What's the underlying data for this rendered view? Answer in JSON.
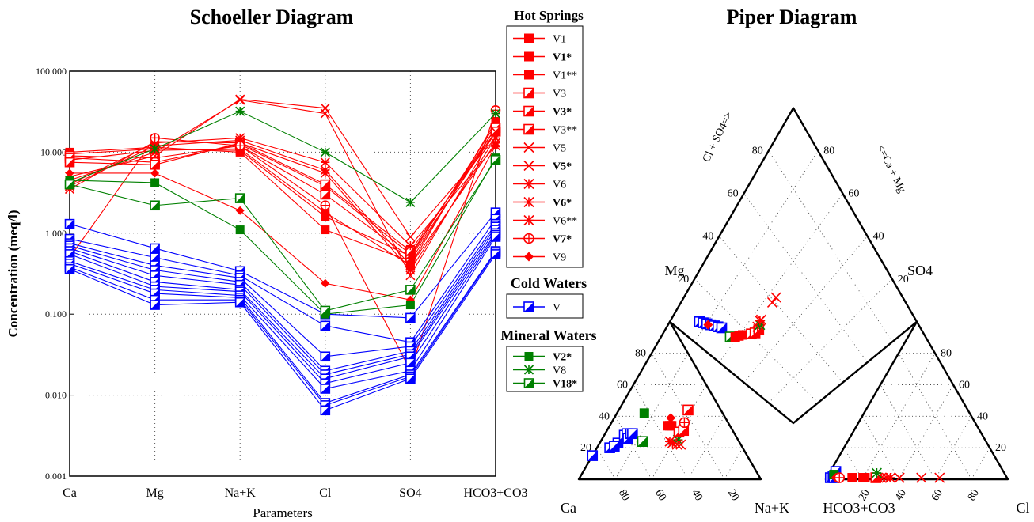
{
  "chart_data": [
    {
      "type": "line",
      "title": "Schoeller Diagram",
      "xlabel": "Parameters",
      "ylabel": "Concentration (meq/l)",
      "yscale": "log",
      "ylim": [
        0.001,
        100
      ],
      "yticks": [
        "0.001",
        "0.010",
        "0.100",
        "1.000",
        "10.000",
        "100.000"
      ],
      "grid": true,
      "categories": [
        "Ca",
        "Mg",
        "Na+K",
        "Cl",
        "SO4",
        "HCO3+CO3"
      ],
      "series": [
        {
          "group": "Hot Springs",
          "marker": "square",
          "color": "#ff0000",
          "values": [
            10,
            11.5,
            10,
            1.1,
            0.45,
            20
          ]
        },
        {
          "group": "Hot Springs",
          "marker": "square",
          "color": "#ff0000",
          "values": [
            9.5,
            11,
            10.5,
            1.6,
            0.52,
            22
          ]
        },
        {
          "group": "Hot Springs",
          "marker": "square",
          "color": "#ff0000",
          "values": [
            8,
            10.5,
            11,
            1.8,
            0.4,
            24
          ]
        },
        {
          "group": "Hot Springs",
          "marker": "half-square",
          "color": "#ff0000",
          "values": [
            9,
            8.5,
            12,
            3,
            0.5,
            18
          ]
        },
        {
          "group": "Hot Springs",
          "marker": "half-square",
          "color": "#ff0000",
          "values": [
            8.5,
            7.5,
            12.5,
            3.8,
            0.55,
            20
          ]
        },
        {
          "group": "Hot Springs",
          "marker": "half-square",
          "color": "#ff0000",
          "values": [
            7.5,
            7,
            13,
            4,
            0.6,
            18
          ]
        },
        {
          "group": "Hot Springs",
          "marker": "x",
          "color": "#ff0000",
          "values": [
            5,
            9,
            45,
            35,
            0.9,
            15
          ]
        },
        {
          "group": "Hot Springs",
          "marker": "x",
          "color": "#ff0000",
          "values": [
            4.5,
            10,
            44,
            30,
            0.3,
            18
          ]
        },
        {
          "group": "Hot Springs",
          "marker": "star",
          "color": "#ff0000",
          "values": [
            4,
            13,
            15,
            7.5,
            0.7,
            12
          ]
        },
        {
          "group": "Hot Springs",
          "marker": "star",
          "color": "#ff0000",
          "values": [
            3.8,
            12,
            14,
            6,
            0.4,
            13
          ]
        },
        {
          "group": "Hot Springs",
          "marker": "star",
          "color": "#ff0000",
          "values": [
            3.5,
            13.5,
            13,
            5.5,
            0.35,
            15
          ]
        },
        {
          "group": "Hot Springs",
          "marker": "circle-plus",
          "color": "#ff0000",
          "values": [
            0.5,
            15,
            12,
            2.2,
            0.02,
            33
          ]
        },
        {
          "group": "Hot Springs",
          "marker": "diamond",
          "color": "#ff0000",
          "values": [
            5.5,
            5.5,
            1.9,
            0.24,
            0.15,
            12
          ]
        },
        {
          "group": "Cold Waters",
          "marker": "half-square",
          "color": "#0000ff",
          "values": [
            1.3,
            0.65,
            0.34,
            0.1,
            0.09,
            1.8
          ]
        },
        {
          "group": "Cold Waters",
          "marker": "half-square",
          "color": "#0000ff",
          "values": [
            0.85,
            0.5,
            0.3,
            0.072,
            0.045,
            1.5
          ]
        },
        {
          "group": "Cold Waters",
          "marker": "half-square",
          "color": "#0000ff",
          "values": [
            0.75,
            0.4,
            0.28,
            0.03,
            0.04,
            1.3
          ]
        },
        {
          "group": "Cold Waters",
          "marker": "half-square",
          "color": "#0000ff",
          "values": [
            0.7,
            0.35,
            0.25,
            0.02,
            0.035,
            1.2
          ]
        },
        {
          "group": "Cold Waters",
          "marker": "half-square",
          "color": "#0000ff",
          "values": [
            0.65,
            0.3,
            0.23,
            0.018,
            0.032,
            1.1
          ]
        },
        {
          "group": "Cold Waters",
          "marker": "half-square",
          "color": "#0000ff",
          "values": [
            0.6,
            0.25,
            0.2,
            0.016,
            0.03,
            1.0
          ]
        },
        {
          "group": "Cold Waters",
          "marker": "half-square",
          "color": "#0000ff",
          "values": [
            0.55,
            0.22,
            0.19,
            0.014,
            0.025,
            0.95
          ]
        },
        {
          "group": "Cold Waters",
          "marker": "half-square",
          "color": "#0000ff",
          "values": [
            0.45,
            0.2,
            0.17,
            0.012,
            0.02,
            0.9
          ]
        },
        {
          "group": "Cold Waters",
          "marker": "half-square",
          "color": "#0000ff",
          "values": [
            0.42,
            0.18,
            0.16,
            0.008,
            0.018,
            0.6
          ]
        },
        {
          "group": "Cold Waters",
          "marker": "half-square",
          "color": "#0000ff",
          "values": [
            0.38,
            0.15,
            0.15,
            0.0075,
            0.017,
            0.58
          ]
        },
        {
          "group": "Cold Waters",
          "marker": "half-square",
          "color": "#0000ff",
          "values": [
            0.36,
            0.13,
            0.14,
            0.0065,
            0.016,
            0.55
          ]
        },
        {
          "group": "Mineral Waters",
          "marker": "square",
          "color": "#008000",
          "values": [
            4.5,
            4.2,
            1.1,
            0.1,
            0.13,
            8.5
          ]
        },
        {
          "group": "Mineral Waters",
          "marker": "star",
          "color": "#008000",
          "values": [
            4.2,
            11,
            32,
            10,
            2.4,
            30
          ]
        },
        {
          "group": "Mineral Waters",
          "marker": "half-square",
          "color": "#008000",
          "values": [
            4,
            2.2,
            2.7,
            0.11,
            0.2,
            8
          ]
        }
      ]
    },
    {
      "type": "scatter",
      "title": "Piper Diagram",
      "corner_labels": {
        "ca": "Ca",
        "nak": "Na+K",
        "hco3": "HCO3+CO3",
        "cl": "Cl",
        "mg": "Mg",
        "so4": "SO4"
      },
      "axis_labels": {
        "cl_so4": "Cl + SO4=>",
        "ca_mg": "<=Ca + Mg"
      },
      "tick_values": [
        "20",
        "40",
        "60",
        "80"
      ],
      "cation_points": [
        {
          "ca": 85,
          "nak": 0,
          "marker": "half-square",
          "color": "#0000ff"
        },
        {
          "ca": 73,
          "nak": 7,
          "marker": "half-square",
          "color": "#0000ff"
        },
        {
          "ca": 67,
          "nak": 10,
          "marker": "half-square",
          "color": "#0000ff"
        },
        {
          "ca": 70,
          "nak": 9,
          "marker": "half-square",
          "color": "#0000ff"
        },
        {
          "ca": 61,
          "nak": 11,
          "marker": "half-square",
          "color": "#0000ff"
        },
        {
          "ca": 59,
          "nak": 12,
          "marker": "half-square",
          "color": "#0000ff"
        },
        {
          "ca": 60,
          "nak": 14,
          "marker": "half-square",
          "color": "#0000ff"
        },
        {
          "ca": 57,
          "nak": 14,
          "marker": "half-square",
          "color": "#0000ff"
        },
        {
          "ca": 56,
          "nak": 15,
          "marker": "half-square",
          "color": "#0000ff"
        },
        {
          "ca": 53,
          "nak": 23,
          "marker": "half-square",
          "color": "#008000"
        },
        {
          "ca": 43,
          "nak": 15,
          "marker": "square",
          "color": "#008000"
        },
        {
          "ca": 33,
          "nak": 42,
          "marker": "star",
          "color": "#008000"
        },
        {
          "ca": 30,
          "nak": 31,
          "marker": "diamond",
          "color": "#ff0000"
        },
        {
          "ca": 34,
          "nak": 32,
          "marker": "square",
          "color": "#ff0000"
        },
        {
          "ca": 33,
          "nak": 33,
          "marker": "square",
          "color": "#ff0000"
        },
        {
          "ca": 32,
          "nak": 34,
          "marker": "square",
          "color": "#ff0000"
        },
        {
          "ca": 30,
          "nak": 40,
          "marker": "half-square",
          "color": "#ff0000"
        },
        {
          "ca": 27,
          "nak": 42,
          "marker": "half-square",
          "color": "#ff0000"
        },
        {
          "ca": 18,
          "nak": 38,
          "marker": "half-square",
          "color": "#ff0000"
        },
        {
          "ca": 24,
          "nak": 40,
          "marker": "circle-plus",
          "color": "#ff0000"
        },
        {
          "ca": 38,
          "nak": 38,
          "marker": "star",
          "color": "#ff0000"
        },
        {
          "ca": 37,
          "nak": 40,
          "marker": "star",
          "color": "#ff0000"
        },
        {
          "ca": 35,
          "nak": 43,
          "marker": "x",
          "color": "#ff0000"
        },
        {
          "ca": 33,
          "nak": 45,
          "marker": "x",
          "color": "#ff0000"
        }
      ],
      "anion_points": [
        {
          "cl": 2,
          "so4": 1,
          "marker": "half-square",
          "color": "#0000ff"
        },
        {
          "cl": 3,
          "so4": 2,
          "marker": "half-square",
          "color": "#0000ff"
        },
        {
          "cl": 3,
          "so4": 5,
          "marker": "half-square",
          "color": "#0000ff"
        },
        {
          "cl": 4,
          "so4": 1,
          "marker": "half-square",
          "color": "#0000ff"
        },
        {
          "cl": 3,
          "so4": 3,
          "marker": "square",
          "color": "#008000"
        },
        {
          "cl": 5,
          "so4": 1,
          "marker": "diamond",
          "color": "#ff0000"
        },
        {
          "cl": 7,
          "so4": 1,
          "marker": "circle-plus",
          "color": "#ff0000"
        },
        {
          "cl": 14,
          "so4": 1,
          "marker": "square",
          "color": "#ff0000"
        },
        {
          "cl": 20,
          "so4": 1,
          "marker": "square",
          "color": "#ff0000"
        },
        {
          "cl": 21,
          "so4": 1,
          "marker": "square",
          "color": "#ff0000"
        },
        {
          "cl": 27,
          "so4": 1,
          "marker": "half-square",
          "color": "#ff0000"
        },
        {
          "cl": 30,
          "so4": 1,
          "marker": "star",
          "color": "#ff0000"
        },
        {
          "cl": 33,
          "so4": 1,
          "marker": "star",
          "color": "#ff0000"
        },
        {
          "cl": 35,
          "so4": 1,
          "marker": "star",
          "color": "#ff0000"
        },
        {
          "cl": 40,
          "so4": 1,
          "marker": "x",
          "color": "#ff0000"
        },
        {
          "cl": 52,
          "so4": 1,
          "marker": "x",
          "color": "#ff0000"
        },
        {
          "cl": 62,
          "so4": 1,
          "marker": "x",
          "color": "#ff0000"
        },
        {
          "cl": 26,
          "so4": 4,
          "marker": "star",
          "color": "#008000"
        }
      ],
      "diamond_points": [
        {
          "a": 12,
          "b": 88,
          "marker": "half-square",
          "color": "#0000ff"
        },
        {
          "a": 13,
          "b": 86,
          "marker": "half-square",
          "color": "#0000ff"
        },
        {
          "a": 14,
          "b": 84,
          "marker": "half-square",
          "color": "#0000ff"
        },
        {
          "a": 15,
          "b": 82,
          "marker": "half-square",
          "color": "#0000ff"
        },
        {
          "a": 16,
          "b": 80,
          "marker": "half-square",
          "color": "#0000ff"
        },
        {
          "a": 17,
          "b": 78,
          "marker": "half-square",
          "color": "#0000ff"
        },
        {
          "a": 18,
          "b": 76,
          "marker": "half-square",
          "color": "#0000ff"
        },
        {
          "a": 14,
          "b": 83,
          "marker": "diamond",
          "color": "#ff0000"
        },
        {
          "a": 17,
          "b": 68,
          "marker": "half-square",
          "color": "#008000"
        },
        {
          "a": 19,
          "b": 66,
          "marker": "square",
          "color": "#ff0000"
        },
        {
          "a": 21,
          "b": 65,
          "marker": "square",
          "color": "#ff0000"
        },
        {
          "a": 23,
          "b": 64,
          "marker": "square",
          "color": "#ff0000"
        },
        {
          "a": 27,
          "b": 61,
          "marker": "half-square",
          "color": "#ff0000"
        },
        {
          "a": 29,
          "b": 60,
          "marker": "half-square",
          "color": "#ff0000"
        },
        {
          "a": 32,
          "b": 60,
          "marker": "half-square",
          "color": "#ff0000"
        },
        {
          "a": 33,
          "b": 62,
          "marker": "star",
          "color": "#ff0000"
        },
        {
          "a": 35,
          "b": 62,
          "marker": "star",
          "color": "#008000"
        },
        {
          "a": 38,
          "b": 64,
          "marker": "x",
          "color": "#ff0000"
        },
        {
          "a": 51,
          "b": 68,
          "marker": "x",
          "color": "#ff0000"
        },
        {
          "a": 55,
          "b": 69,
          "marker": "x",
          "color": "#ff0000"
        },
        {
          "a": 37,
          "b": 64,
          "marker": "star",
          "color": "#ff0000"
        }
      ]
    }
  ],
  "legend": {
    "groups": [
      {
        "title": "Hot Springs",
        "items": [
          {
            "label": "V1",
            "marker": "square",
            "color": "#ff0000"
          },
          {
            "label": "V1*",
            "marker": "square",
            "color": "#ff0000"
          },
          {
            "label": "V1**",
            "marker": "square",
            "color": "#ff0000"
          },
          {
            "label": "V3",
            "marker": "half-square",
            "color": "#ff0000"
          },
          {
            "label": "V3*",
            "marker": "half-square",
            "color": "#ff0000"
          },
          {
            "label": "V3**",
            "marker": "half-square",
            "color": "#ff0000"
          },
          {
            "label": "V5",
            "marker": "x",
            "color": "#ff0000"
          },
          {
            "label": "V5*",
            "marker": "x",
            "color": "#ff0000"
          },
          {
            "label": "V6",
            "marker": "star",
            "color": "#ff0000"
          },
          {
            "label": "V6*",
            "marker": "star",
            "color": "#ff0000"
          },
          {
            "label": "V6**",
            "marker": "star",
            "color": "#ff0000"
          },
          {
            "label": "V7*",
            "marker": "circle-plus",
            "color": "#ff0000"
          },
          {
            "label": "V9",
            "marker": "diamond",
            "color": "#ff0000"
          }
        ]
      },
      {
        "title": "Cold Waters",
        "items": [
          {
            "label": "V",
            "marker": "half-square",
            "color": "#0000ff"
          }
        ]
      },
      {
        "title": "Mineral Waters",
        "items": [
          {
            "label": "V2*",
            "marker": "square",
            "color": "#008000"
          },
          {
            "label": "V8",
            "marker": "star",
            "color": "#008000"
          },
          {
            "label": "V18*",
            "marker": "half-square",
            "color": "#008000"
          }
        ]
      }
    ]
  }
}
